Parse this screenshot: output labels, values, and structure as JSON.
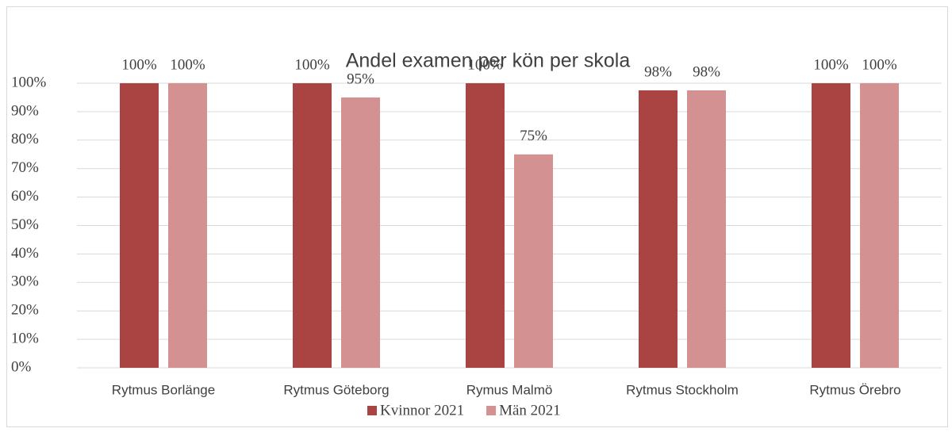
{
  "chart_data": {
    "type": "bar",
    "title": "Andel examen per kön per skola",
    "categories": [
      "Rytmus Borlänge",
      "Rytmus Göteborg",
      "Rymus Malmö",
      "Rytmus Stockholm",
      "Rytmus Örebro"
    ],
    "series": [
      {
        "name": "Kvinnor 2021",
        "color": "#a94442",
        "values": [
          100,
          100,
          100,
          97.5,
          100
        ],
        "value_labels": [
          "100%",
          "100%",
          "100%",
          "98%",
          "100%"
        ]
      },
      {
        "name": "Män 2021",
        "color": "#d39191",
        "values": [
          100,
          95,
          75,
          97.5,
          100
        ],
        "value_labels": [
          "100%",
          "95%",
          "75%",
          "98%",
          "100%"
        ]
      }
    ],
    "ylim": [
      0,
      100
    ],
    "yticks": [
      {
        "value": 0,
        "label": "0%"
      },
      {
        "value": 10,
        "label": "10%"
      },
      {
        "value": 20,
        "label": "20%"
      },
      {
        "value": 30,
        "label": "30%"
      },
      {
        "value": 40,
        "label": "40%"
      },
      {
        "value": 50,
        "label": "50%"
      },
      {
        "value": 60,
        "label": "60%"
      },
      {
        "value": 70,
        "label": "70%"
      },
      {
        "value": 80,
        "label": "80%"
      },
      {
        "value": 90,
        "label": "90%"
      },
      {
        "value": 100,
        "label": "100%"
      }
    ],
    "grid": true,
    "legend": "bottom"
  }
}
